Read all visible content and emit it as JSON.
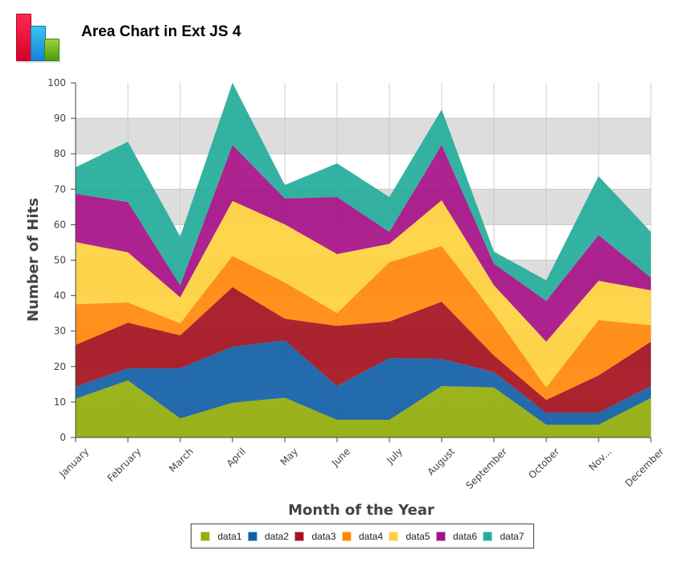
{
  "header": {
    "title": "Area Chart in Ext JS 4",
    "logo_icon": "bar-chart-logo-icon"
  },
  "chart_data": {
    "type": "area",
    "stacked": true,
    "title": "Area Chart in Ext JS 4",
    "xlabel": "Month of the Year",
    "ylabel": "Number of Hits",
    "ylim": [
      0,
      100
    ],
    "yticks": [
      0,
      10,
      20,
      30,
      40,
      50,
      60,
      70,
      80,
      90,
      100
    ],
    "grid": "horizontal alternating bands (odd 10-unit bands shaded) plus vertical lines at each category",
    "legend_position": "bottom",
    "categories": [
      "January",
      "February",
      "March",
      "April",
      "May",
      "June",
      "July",
      "August",
      "September",
      "October",
      "November",
      "December"
    ],
    "category_labels": [
      "January",
      "February",
      "March",
      "April",
      "May",
      "June",
      "July",
      "August",
      "September",
      "October",
      "Nov...",
      "December"
    ],
    "series": [
      {
        "name": "data1",
        "color": "#94ae0a",
        "values": [
          10.9,
          16.1,
          5.4,
          9.8,
          11.2,
          5.0,
          5.0,
          14.5,
          14.1,
          3.6,
          3.6,
          11.1
        ]
      },
      {
        "name": "data2",
        "color": "#115fa6",
        "values": [
          3.4,
          3.4,
          14.1,
          15.8,
          16.2,
          9.5,
          17.4,
          7.7,
          4.3,
          3.4,
          3.4,
          3.4
        ]
      },
      {
        "name": "data3",
        "color": "#a61120",
        "values": [
          11.8,
          12.9,
          9.3,
          16.8,
          6.1,
          17.0,
          10.3,
          16.1,
          4.7,
          3.6,
          10.5,
          12.5
        ]
      },
      {
        "name": "data4",
        "color": "#ff8809",
        "values": [
          11.5,
          5.7,
          3.4,
          8.8,
          10.2,
          3.6,
          16.7,
          15.7,
          11.8,
          3.5,
          15.6,
          4.7
        ]
      },
      {
        "name": "data5",
        "color": "#ffd13e",
        "values": [
          17.5,
          14.1,
          7.3,
          15.5,
          16.4,
          16.6,
          5.2,
          12.9,
          8.0,
          12.9,
          11.1,
          9.8
        ]
      },
      {
        "name": "data6",
        "color": "#a61187",
        "values": [
          13.6,
          14.2,
          3.4,
          15.8,
          7.3,
          16.1,
          3.4,
          15.6,
          6.1,
          11.5,
          12.9,
          3.6
        ]
      },
      {
        "name": "data7",
        "color": "#24ad9a",
        "values": [
          7.5,
          17.0,
          13.8,
          17.5,
          3.8,
          9.5,
          9.8,
          10.0,
          3.4,
          5.8,
          16.6,
          12.9
        ]
      }
    ]
  },
  "legend": {
    "items": [
      {
        "label": "data1",
        "color": "#94ae0a"
      },
      {
        "label": "data2",
        "color": "#115fa6"
      },
      {
        "label": "data3",
        "color": "#a61120"
      },
      {
        "label": "data4",
        "color": "#ff8809"
      },
      {
        "label": "data5",
        "color": "#ffd13e"
      },
      {
        "label": "data6",
        "color": "#a61187"
      },
      {
        "label": "data7",
        "color": "#24ad9a"
      }
    ]
  }
}
